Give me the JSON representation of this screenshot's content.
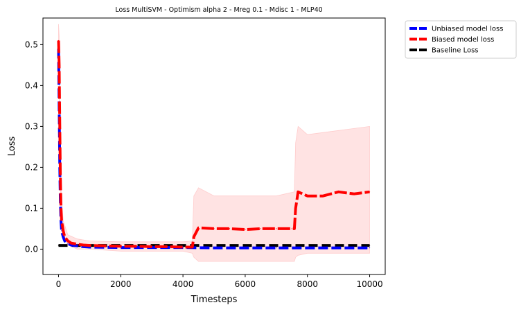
{
  "chart_data": {
    "type": "line",
    "title": "Loss MultiSVM - Optimism alpha 2 - Mreg 0.1 - Mdisc 1 - MLP40",
    "xlabel": "Timesteps",
    "ylabel": "Loss",
    "xlim": [
      -500,
      10500
    ],
    "ylim": [
      -0.062,
      0.565
    ],
    "xticks": [
      0,
      2000,
      4000,
      6000,
      8000,
      10000
    ],
    "xtick_labels": [
      "0",
      "2000",
      "4000",
      "6000",
      "8000",
      "10000"
    ],
    "yticks": [
      0.0,
      0.1,
      0.2,
      0.3,
      0.4,
      0.5
    ],
    "ytick_labels": [
      "0.0",
      "0.1",
      "0.2",
      "0.3",
      "0.4",
      "0.5"
    ],
    "grid": false,
    "legend_position": "outside-upper-right",
    "colors": {
      "unbiased": "#0000ff",
      "biased": "#ff0000",
      "baseline": "#000000",
      "band": "#ffcccc"
    },
    "series": [
      {
        "name": "Unbiased model loss",
        "color": "#0000ff",
        "style": "dashed",
        "x": [
          0,
          20,
          40,
          60,
          80,
          100,
          150,
          200,
          300,
          400,
          600,
          800,
          1000,
          2000,
          3000,
          4000,
          5000,
          6000,
          7000,
          8000,
          9000,
          10000
        ],
        "values": [
          0.49,
          0.35,
          0.2,
          0.12,
          0.07,
          0.045,
          0.03,
          0.02,
          0.014,
          0.01,
          0.008,
          0.006,
          0.005,
          0.004,
          0.004,
          0.004,
          0.003,
          0.003,
          0.003,
          0.003,
          0.003,
          0.003
        ]
      },
      {
        "name": "Biased model loss",
        "color": "#ff0000",
        "style": "dashed",
        "x": [
          0,
          20,
          40,
          60,
          80,
          100,
          150,
          200,
          300,
          400,
          600,
          800,
          1000,
          1500,
          2000,
          2500,
          3000,
          3500,
          4000,
          4300,
          4350,
          4500,
          5000,
          5500,
          6000,
          6500,
          7000,
          7500,
          7580,
          7620,
          7700,
          8000,
          8500,
          9000,
          9500,
          10000
        ],
        "values": [
          0.51,
          0.45,
          0.3,
          0.18,
          0.1,
          0.07,
          0.045,
          0.03,
          0.02,
          0.015,
          0.012,
          0.01,
          0.009,
          0.008,
          0.007,
          0.007,
          0.006,
          0.006,
          0.005,
          0.005,
          0.03,
          0.052,
          0.05,
          0.05,
          0.048,
          0.05,
          0.05,
          0.05,
          0.05,
          0.1,
          0.14,
          0.13,
          0.13,
          0.14,
          0.135,
          0.14
        ]
      },
      {
        "name": "Baseline Loss",
        "color": "#000000",
        "style": "dashed",
        "x": [
          0,
          10000
        ],
        "values": [
          0.009,
          0.009
        ]
      }
    ],
    "bands": [
      {
        "series": "Biased model loss",
        "x": [
          0,
          20,
          40,
          80,
          150,
          300,
          600,
          1000,
          2000,
          3000,
          4000,
          4300,
          4350,
          4500,
          5000,
          6000,
          7000,
          7580,
          7620,
          7700,
          8000,
          9000,
          10000
        ],
        "lower": [
          0.46,
          0.4,
          0.25,
          0.08,
          0.03,
          0.01,
          0.0,
          0.0,
          -0.005,
          -0.005,
          -0.005,
          -0.01,
          -0.02,
          -0.03,
          -0.03,
          -0.03,
          -0.03,
          -0.03,
          -0.02,
          -0.015,
          -0.01,
          -0.01,
          -0.01
        ],
        "upper": [
          0.55,
          0.52,
          0.38,
          0.15,
          0.07,
          0.035,
          0.025,
          0.02,
          0.018,
          0.018,
          0.018,
          0.02,
          0.13,
          0.15,
          0.13,
          0.13,
          0.13,
          0.14,
          0.26,
          0.3,
          0.28,
          0.29,
          0.3
        ]
      }
    ]
  }
}
